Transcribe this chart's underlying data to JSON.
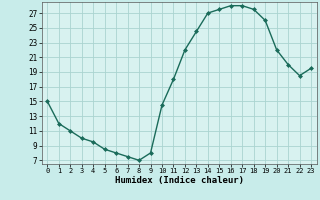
{
  "x": [
    0,
    1,
    2,
    3,
    4,
    5,
    6,
    7,
    8,
    9,
    10,
    11,
    12,
    13,
    14,
    15,
    16,
    17,
    18,
    19,
    20,
    21,
    22,
    23
  ],
  "y": [
    15,
    12,
    11,
    10,
    9.5,
    8.5,
    8,
    7.5,
    7,
    8,
    14.5,
    18,
    22,
    24.5,
    27,
    27.5,
    28,
    28,
    27.5,
    26,
    22,
    20,
    18.5,
    19.5
  ],
  "xlabel": "Humidex (Indice chaleur)",
  "line_color": "#1a6b5a",
  "bg_color": "#c8ecea",
  "grid_color": "#aad4d0",
  "plot_bg": "#d8f2f0",
  "xlim": [
    -0.5,
    23.5
  ],
  "ylim": [
    6.5,
    28.5
  ],
  "yticks": [
    7,
    9,
    11,
    13,
    15,
    17,
    19,
    21,
    23,
    25,
    27
  ],
  "xticks": [
    0,
    1,
    2,
    3,
    4,
    5,
    6,
    7,
    8,
    9,
    10,
    11,
    12,
    13,
    14,
    15,
    16,
    17,
    18,
    19,
    20,
    21,
    22,
    23
  ]
}
